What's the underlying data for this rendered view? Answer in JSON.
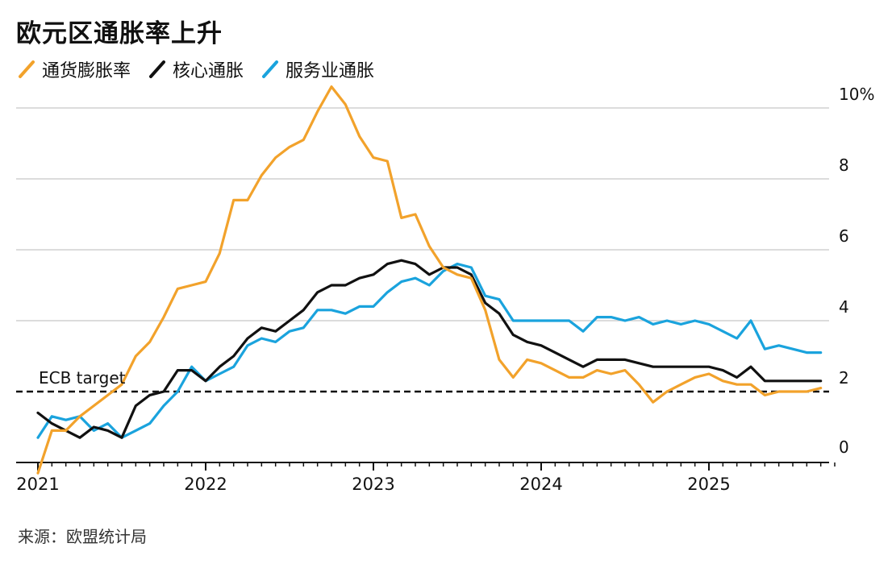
{
  "title": "欧元区通胀率上升",
  "source": "来源：欧盟统计局",
  "chart_data": {
    "type": "line",
    "title": "欧元区通胀率上升",
    "ylim": [
      0,
      10
    ],
    "y_ticks": [
      {
        "value": 10,
        "label": "10%"
      },
      {
        "value": 8,
        "label": "8"
      },
      {
        "value": 6,
        "label": "6"
      },
      {
        "value": 4,
        "label": "4"
      },
      {
        "value": 2,
        "label": "2"
      },
      {
        "value": 0,
        "label": "0"
      }
    ],
    "x_ticks": [
      "2021",
      "2022",
      "2023",
      "2024",
      "2025"
    ],
    "grid": true,
    "legend_position": "top-left",
    "annotation": {
      "label": "ECB target",
      "value": 2
    },
    "months": [
      "2021-01",
      "2021-02",
      "2021-03",
      "2021-04",
      "2021-05",
      "2021-06",
      "2021-07",
      "2021-08",
      "2021-09",
      "2021-10",
      "2021-11",
      "2021-12",
      "2022-01",
      "2022-02",
      "2022-03",
      "2022-04",
      "2022-05",
      "2022-06",
      "2022-07",
      "2022-08",
      "2022-09",
      "2022-10",
      "2022-11",
      "2022-12",
      "2023-01",
      "2023-02",
      "2023-03",
      "2023-04",
      "2023-05",
      "2023-06",
      "2023-07",
      "2023-08",
      "2023-09",
      "2023-10",
      "2023-11",
      "2023-12",
      "2024-01",
      "2024-02",
      "2024-03",
      "2024-04",
      "2024-05",
      "2024-06",
      "2024-07",
      "2024-08",
      "2024-09",
      "2024-10",
      "2024-11",
      "2024-12",
      "2025-01",
      "2025-02",
      "2025-03",
      "2025-04",
      "2025-05",
      "2025-06",
      "2025-07",
      "2025-08",
      "2025-09"
    ],
    "series": [
      {
        "name": "通货膨胀率",
        "color": "#f2a22b",
        "values": [
          -0.3,
          0.9,
          0.9,
          1.3,
          1.6,
          1.9,
          2.2,
          3.0,
          3.4,
          4.1,
          4.9,
          5.0,
          5.1,
          5.9,
          7.4,
          7.4,
          8.1,
          8.6,
          8.9,
          9.1,
          9.9,
          10.6,
          10.1,
          9.2,
          8.6,
          8.5,
          6.9,
          7.0,
          6.1,
          5.5,
          5.3,
          5.2,
          4.3,
          2.9,
          2.4,
          2.9,
          2.8,
          2.6,
          2.4,
          2.4,
          2.6,
          2.5,
          2.6,
          2.2,
          1.7,
          2.0,
          2.2,
          2.4,
          2.5,
          2.3,
          2.2,
          2.2,
          1.9,
          2.0,
          2.0,
          2.0,
          2.1
        ]
      },
      {
        "name": "核心通胀",
        "color": "#111111",
        "values": [
          1.4,
          1.1,
          0.9,
          0.7,
          1.0,
          0.9,
          0.7,
          1.6,
          1.9,
          2.0,
          2.6,
          2.6,
          2.3,
          2.7,
          3.0,
          3.5,
          3.8,
          3.7,
          4.0,
          4.3,
          4.8,
          5.0,
          5.0,
          5.2,
          5.3,
          5.6,
          5.7,
          5.6,
          5.3,
          5.5,
          5.5,
          5.3,
          4.5,
          4.2,
          3.6,
          3.4,
          3.3,
          3.1,
          2.9,
          2.7,
          2.9,
          2.9,
          2.9,
          2.8,
          2.7,
          2.7,
          2.7,
          2.7,
          2.7,
          2.6,
          2.4,
          2.7,
          2.3,
          2.3,
          2.3,
          2.3,
          2.3
        ]
      },
      {
        "name": "服务业通胀",
        "color": "#1aa3dd",
        "values": [
          0.7,
          1.3,
          1.2,
          1.3,
          0.9,
          1.1,
          0.7,
          0.9,
          1.1,
          1.6,
          2.0,
          2.7,
          2.3,
          2.5,
          2.7,
          3.3,
          3.5,
          3.4,
          3.7,
          3.8,
          4.3,
          4.3,
          4.2,
          4.4,
          4.4,
          4.8,
          5.1,
          5.2,
          5.0,
          5.4,
          5.6,
          5.5,
          4.7,
          4.6,
          4.0,
          4.0,
          4.0,
          4.0,
          4.0,
          3.7,
          4.1,
          4.1,
          4.0,
          4.1,
          3.9,
          4.0,
          3.9,
          4.0,
          3.9,
          3.7,
          3.5,
          4.0,
          3.2,
          3.3,
          3.2,
          3.1,
          3.1
        ]
      }
    ]
  }
}
